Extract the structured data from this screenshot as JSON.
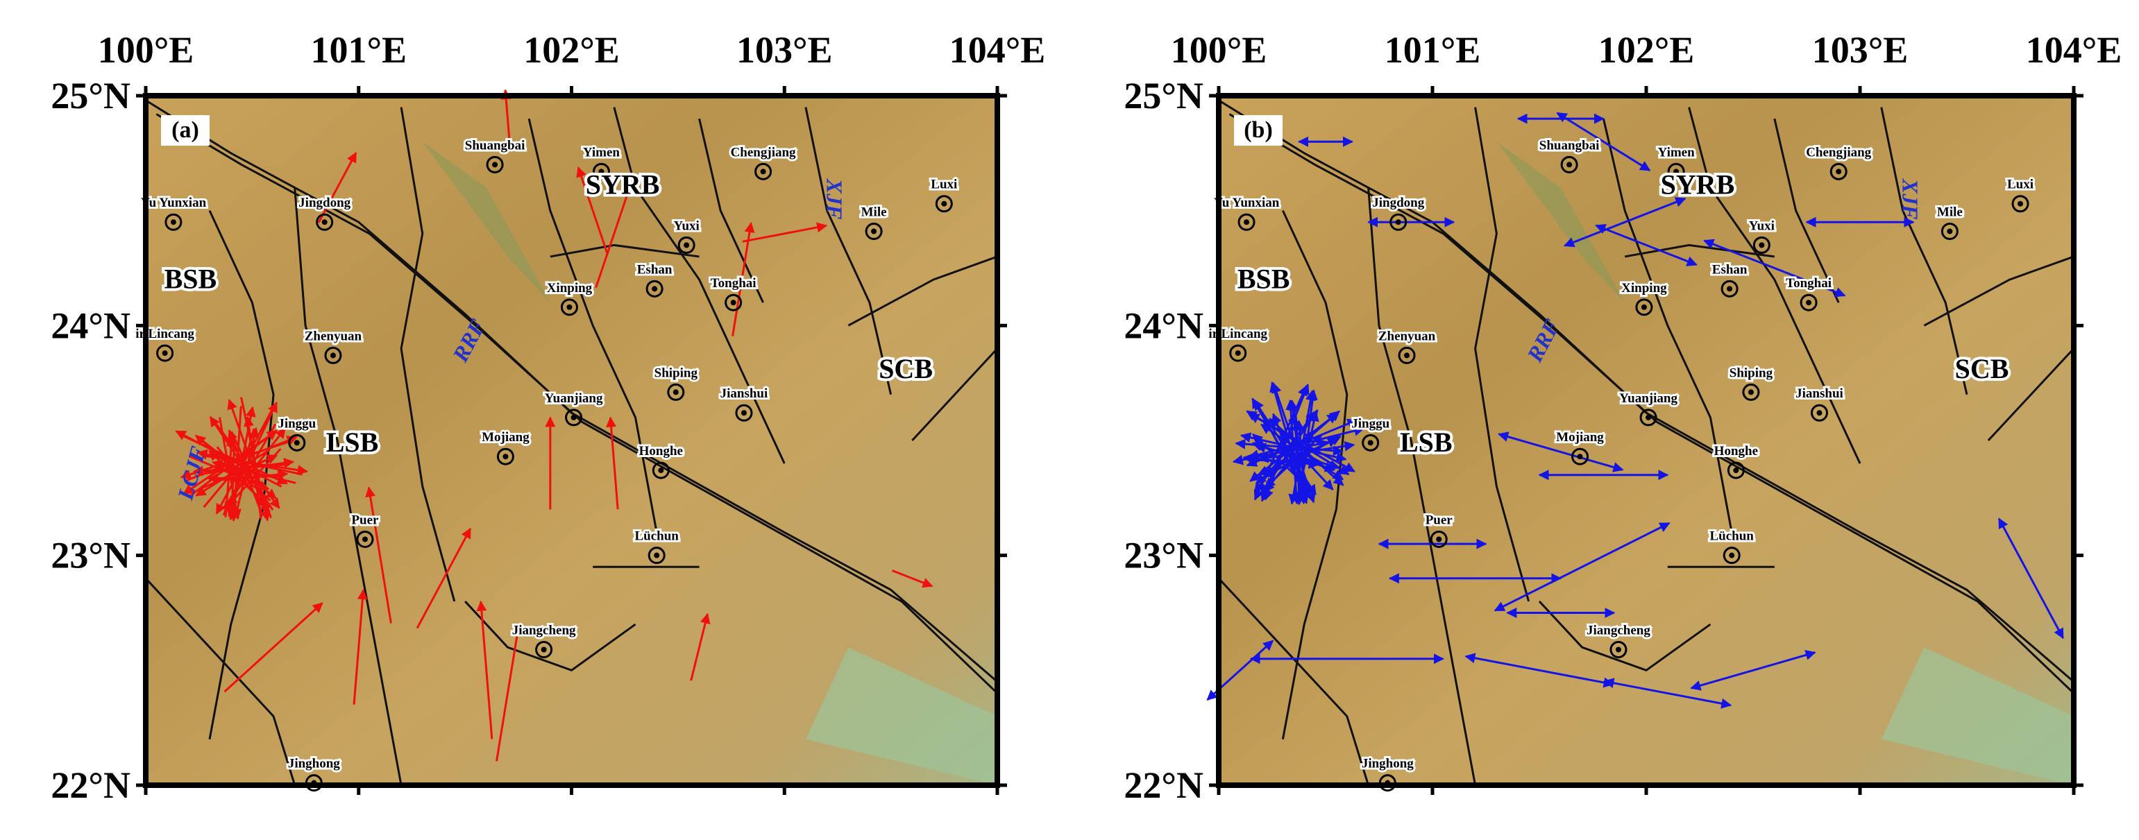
{
  "x_axis_labels": [
    "100°E",
    "101°E",
    "102°E",
    "103°E",
    "104°E"
  ],
  "y_axis_labels": [
    "25°N",
    "24°N",
    "23°N",
    "22°N"
  ],
  "panels": [
    {
      "label": "(a)",
      "cities": [
        "Shuangbai",
        "Yimen",
        "Chengjiang",
        "Luxi",
        "Yu Yunxian",
        "Jingdong",
        "Mile",
        "Yuxi",
        "Eshan",
        "Tonghai",
        "Xinping",
        "ir Lincang",
        "Zhenyuan",
        "Shiping",
        "Jianshui",
        "Yuanjiang",
        "Jinggu",
        "Mojiang",
        "Honghe",
        "Puer",
        "Lüchun",
        "Jiangcheng",
        "Jinghong"
      ],
      "regions": [
        "SYRB",
        "BSB",
        "LSB",
        "SCB"
      ],
      "faults": [
        "RRF",
        "XJF",
        "LCJF"
      ]
    },
    {
      "label": "(b)",
      "cities": [
        "Shuangbai",
        "Yimen",
        "Chengjiang",
        "Luxi",
        "Yu Yunxian",
        "Jingdong",
        "Mile",
        "Yuxi",
        "Eshan",
        "Tonghai",
        "Xinping",
        "ir Lincang",
        "Zhenyuan",
        "Shiping",
        "Jianshui",
        "Yuanjiang",
        "Jinggu",
        "Mojiang",
        "Honghe",
        "Puer",
        "Lüchun",
        "Jiangcheng",
        "Jinghong"
      ],
      "regions": [
        "SYRB",
        "BSB",
        "LSB",
        "SCB"
      ],
      "faults": [
        "RRF",
        "XJF"
      ]
    }
  ]
}
